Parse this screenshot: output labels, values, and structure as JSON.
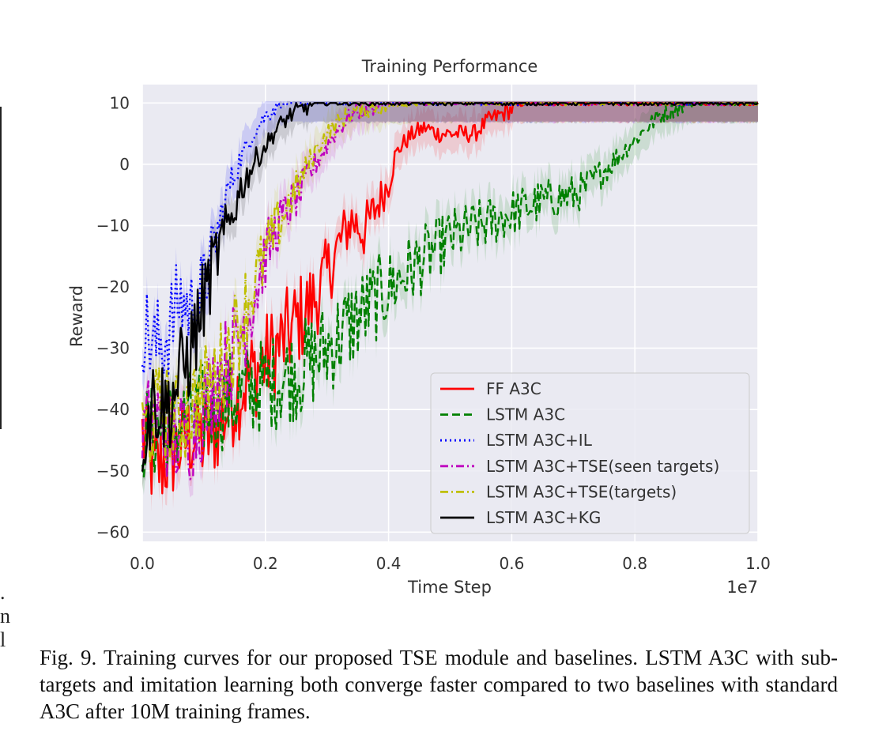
{
  "chart_data": {
    "type": "line",
    "title": "Training Performance",
    "xlabel": "Time Step",
    "ylabel": "Reward",
    "x_offset_label": "1e7",
    "xlim": [
      0.0,
      1.0
    ],
    "ylim": [
      -61.5,
      13
    ],
    "x_ticks": [
      0.0,
      0.2,
      0.4,
      0.6,
      0.8,
      1.0
    ],
    "x_tick_labels": [
      "0.0",
      "0.2",
      "0.4",
      "0.6",
      "0.8",
      "1.0"
    ],
    "y_ticks": [
      10,
      0,
      -10,
      -20,
      -30,
      -40,
      -50,
      -60
    ],
    "y_tick_labels": [
      "10",
      "0",
      "−10",
      "−20",
      "−30",
      "−40",
      "−50",
      "−60"
    ],
    "grid": true,
    "legend_position": "lower-right",
    "series": [
      {
        "name": "FF A3C",
        "color": "#ff0000",
        "style": "solid",
        "points": [
          [
            0.0,
            -44
          ],
          [
            0.02,
            -50
          ],
          [
            0.05,
            -47
          ],
          [
            0.08,
            -44
          ],
          [
            0.1,
            -45
          ],
          [
            0.12,
            -43
          ],
          [
            0.15,
            -38
          ],
          [
            0.18,
            -34
          ],
          [
            0.2,
            -32
          ],
          [
            0.22,
            -30
          ],
          [
            0.25,
            -26
          ],
          [
            0.28,
            -22
          ],
          [
            0.3,
            -18
          ],
          [
            0.32,
            -13
          ],
          [
            0.34,
            -9
          ],
          [
            0.36,
            -11
          ],
          [
            0.38,
            -7
          ],
          [
            0.4,
            -3
          ],
          [
            0.41,
            1
          ],
          [
            0.42,
            3
          ],
          [
            0.44,
            5
          ],
          [
            0.46,
            6
          ],
          [
            0.48,
            5
          ],
          [
            0.5,
            5
          ],
          [
            0.52,
            5
          ],
          [
            0.54,
            5
          ],
          [
            0.56,
            7
          ],
          [
            0.58,
            8
          ],
          [
            0.6,
            9
          ],
          [
            0.62,
            10
          ],
          [
            0.7,
            10
          ],
          [
            1.0,
            10
          ]
        ]
      },
      {
        "name": "LSTM A3C",
        "color": "#008000",
        "style": "dashed",
        "points": [
          [
            0.0,
            -44
          ],
          [
            0.05,
            -43
          ],
          [
            0.1,
            -40
          ],
          [
            0.15,
            -38
          ],
          [
            0.2,
            -36
          ],
          [
            0.25,
            -34
          ],
          [
            0.3,
            -30
          ],
          [
            0.35,
            -25
          ],
          [
            0.4,
            -20
          ],
          [
            0.45,
            -16
          ],
          [
            0.5,
            -12
          ],
          [
            0.55,
            -10
          ],
          [
            0.6,
            -8
          ],
          [
            0.65,
            -6
          ],
          [
            0.7,
            -5
          ],
          [
            0.72,
            -4
          ],
          [
            0.75,
            -1
          ],
          [
            0.77,
            1
          ],
          [
            0.8,
            4
          ],
          [
            0.82,
            6
          ],
          [
            0.84,
            8
          ],
          [
            0.86,
            9
          ],
          [
            0.88,
            9.5
          ],
          [
            0.9,
            10
          ],
          [
            1.0,
            10
          ]
        ]
      },
      {
        "name": "LSTM A3C+IL",
        "color": "#0000ff",
        "style": "dotted",
        "points": [
          [
            0.0,
            -26
          ],
          [
            0.02,
            -30
          ],
          [
            0.04,
            -28
          ],
          [
            0.06,
            -22
          ],
          [
            0.08,
            -24
          ],
          [
            0.1,
            -20
          ],
          [
            0.12,
            -12
          ],
          [
            0.14,
            -4
          ],
          [
            0.16,
            1
          ],
          [
            0.18,
            5
          ],
          [
            0.2,
            8
          ],
          [
            0.22,
            9.5
          ],
          [
            0.24,
            10
          ],
          [
            0.3,
            10
          ],
          [
            1.0,
            10
          ]
        ]
      },
      {
        "name": "LSTM A3C+TSE(seen targets)",
        "color": "#bf00bf",
        "style": "dashdot",
        "points": [
          [
            0.0,
            -44
          ],
          [
            0.02,
            -41
          ],
          [
            0.05,
            -45
          ],
          [
            0.08,
            -44
          ],
          [
            0.1,
            -40
          ],
          [
            0.12,
            -35
          ],
          [
            0.15,
            -30
          ],
          [
            0.18,
            -22
          ],
          [
            0.2,
            -15
          ],
          [
            0.22,
            -10
          ],
          [
            0.24,
            -7
          ],
          [
            0.26,
            -4
          ],
          [
            0.28,
            0
          ],
          [
            0.3,
            3
          ],
          [
            0.32,
            6
          ],
          [
            0.34,
            8
          ],
          [
            0.36,
            9
          ],
          [
            0.38,
            9.5
          ],
          [
            0.4,
            10
          ],
          [
            1.0,
            10
          ]
        ]
      },
      {
        "name": "LSTM A3C+TSE(targets)",
        "color": "#bfbf00",
        "style": "dashdot",
        "points": [
          [
            0.0,
            -44
          ],
          [
            0.03,
            -40
          ],
          [
            0.06,
            -42
          ],
          [
            0.09,
            -38
          ],
          [
            0.12,
            -35
          ],
          [
            0.15,
            -28
          ],
          [
            0.18,
            -20
          ],
          [
            0.2,
            -15
          ],
          [
            0.22,
            -10
          ],
          [
            0.24,
            -6
          ],
          [
            0.26,
            -2
          ],
          [
            0.28,
            2
          ],
          [
            0.3,
            5
          ],
          [
            0.32,
            7
          ],
          [
            0.34,
            8.5
          ],
          [
            0.36,
            9
          ],
          [
            0.4,
            9.5
          ],
          [
            0.45,
            10
          ],
          [
            1.0,
            10
          ]
        ]
      },
      {
        "name": "LSTM A3C+KG",
        "color": "#000000",
        "style": "solid",
        "points": [
          [
            0.0,
            -44
          ],
          [
            0.02,
            -38
          ],
          [
            0.04,
            -40
          ],
          [
            0.06,
            -35
          ],
          [
            0.08,
            -30
          ],
          [
            0.1,
            -22
          ],
          [
            0.12,
            -15
          ],
          [
            0.14,
            -10
          ],
          [
            0.16,
            -4
          ],
          [
            0.18,
            0
          ],
          [
            0.2,
            3
          ],
          [
            0.22,
            6
          ],
          [
            0.24,
            8
          ],
          [
            0.26,
            9
          ],
          [
            0.28,
            10
          ],
          [
            0.3,
            10
          ],
          [
            1.0,
            10
          ]
        ]
      }
    ]
  },
  "caption": {
    "text": "Fig. 9.  Training curves for our proposed TSE module and baselines. LSTM A3C with sub-targets and imitation learning both converge faster compared to two baselines with standard A3C after 10M training frames."
  },
  "margin_marks": [
    ".",
    "n",
    "l"
  ]
}
